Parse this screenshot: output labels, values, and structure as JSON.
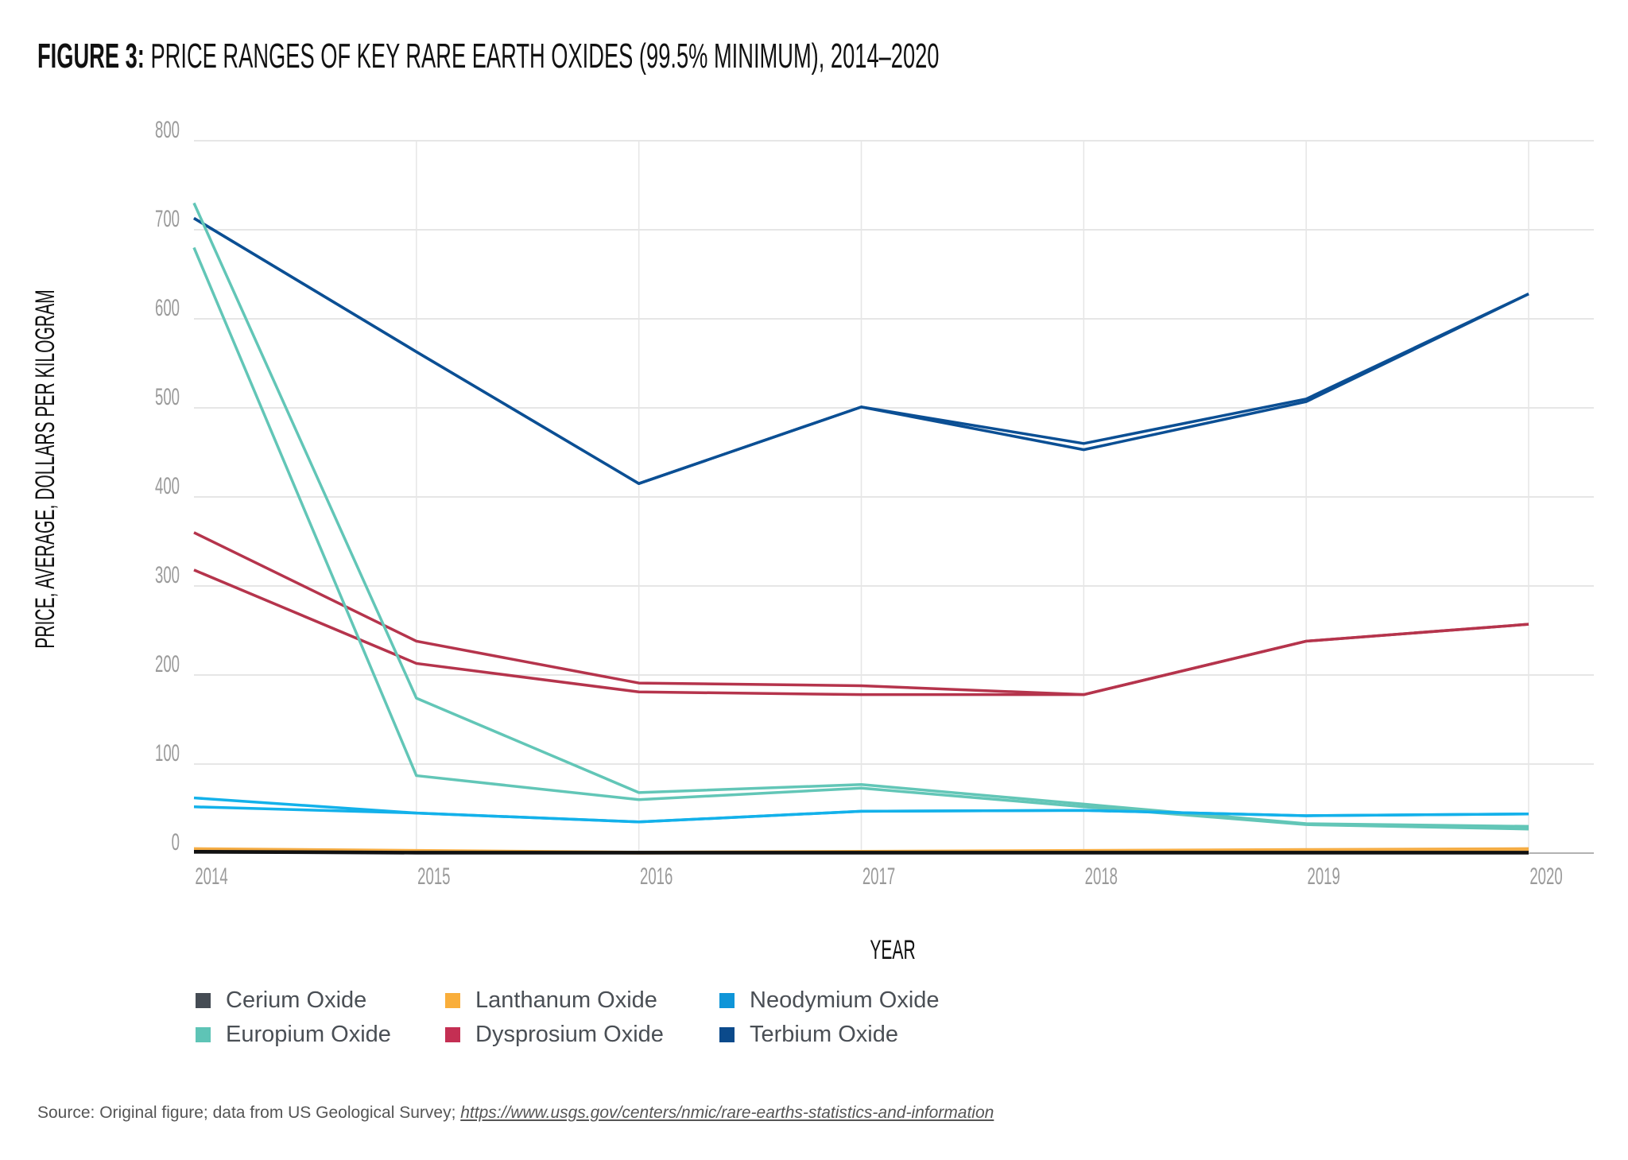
{
  "title": {
    "label": "FIGURE 3:",
    "text": "PRICE RANGES OF KEY RARE EARTH OXIDES (99.5% MINIMUM), 2014–2020"
  },
  "source": {
    "text": "Source: Original figure; data from US Geological Survey;",
    "link": "https://www.usgs.gov/centers/nmic/rare-earths-statistics-and-information"
  },
  "chart_data": {
    "type": "line",
    "xlabel": "YEAR",
    "ylabel": "PRICE, AVERAGE, DOLLARS PER KILOGRAM",
    "x": [
      "2014",
      "2015",
      "2016",
      "2017",
      "2018",
      "2019",
      "2020"
    ],
    "ylim": [
      0,
      800
    ],
    "yticks": [
      "0",
      "100",
      "200",
      "300",
      "400",
      "500",
      "600",
      "700",
      "800"
    ],
    "grid": true,
    "legend_position": "bottom",
    "series": [
      {
        "name": "Cerium Oxide",
        "color": "#454c54",
        "line_color": "#111111",
        "high": [
          2,
          1,
          1,
          1,
          1,
          1,
          1
        ],
        "low": [
          1,
          0,
          0,
          0,
          0,
          0,
          0
        ]
      },
      {
        "name": "Lanthanum Oxide",
        "color": "#f9ae3b",
        "line_color": "#f4ac44",
        "high": [
          5,
          3,
          1,
          2,
          3,
          4,
          5
        ],
        "low": [
          4,
          2,
          0,
          1,
          2,
          3,
          4
        ]
      },
      {
        "name": "Neodymium Oxide",
        "color": "#0f95d8",
        "line_color": "#13b1ea",
        "high": [
          62,
          45,
          35,
          47,
          48,
          42,
          44
        ],
        "low": [
          52,
          45,
          35,
          47,
          48,
          42,
          44
        ]
      },
      {
        "name": "Europium Oxide",
        "color": "#5ec4b6",
        "line_color": "#62c6b7",
        "high": [
          730,
          174,
          68,
          77,
          55,
          33,
          30
        ],
        "low": [
          680,
          87,
          60,
          73,
          52,
          32,
          27
        ]
      },
      {
        "name": "Dysprosium Oxide",
        "color": "#c42f53",
        "line_color": "#b5344c",
        "high": [
          360,
          238,
          191,
          188,
          178,
          238,
          257
        ],
        "low": [
          318,
          213,
          181,
          178,
          178,
          238,
          257
        ]
      },
      {
        "name": "Terbium Oxide",
        "color": "#0b4a8b",
        "line_color": "#0b4f94",
        "high": [
          713,
          563,
          415,
          501,
          460,
          510,
          628
        ],
        "low": [
          713,
          563,
          415,
          501,
          453,
          507,
          628
        ]
      }
    ]
  }
}
